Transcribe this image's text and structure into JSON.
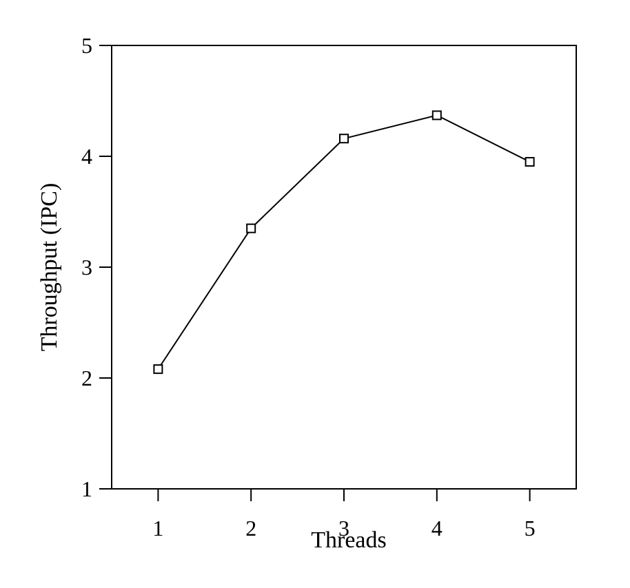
{
  "chart_data": {
    "type": "line",
    "title": "",
    "xlabel": "Threads",
    "ylabel": "Throughput (IPC)",
    "x": [
      1,
      2,
      3,
      4,
      5
    ],
    "series": [
      {
        "values": [
          2.08,
          3.35,
          4.16,
          4.37,
          3.95
        ],
        "marker": "open-square"
      }
    ],
    "x_ticks": [
      "1",
      "2",
      "3",
      "4",
      "5"
    ],
    "y_ticks": [
      "1",
      "2",
      "3",
      "4",
      "5"
    ],
    "xlim": [
      0.5,
      5.5
    ],
    "ylim": [
      1,
      5
    ],
    "grid": false,
    "legend": "none",
    "line_color": "#000000"
  }
}
